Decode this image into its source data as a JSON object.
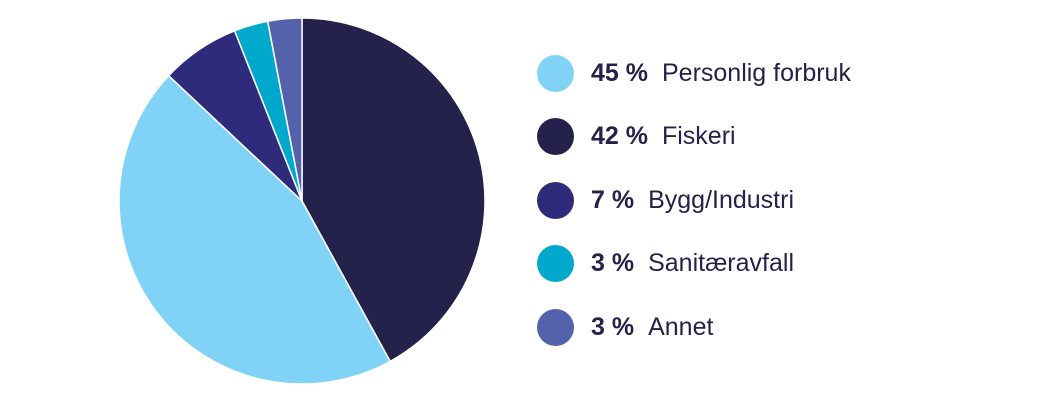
{
  "chart_data": {
    "type": "pie",
    "start": "top",
    "direction": "clockwise",
    "slices": [
      {
        "label": "Fiskeri",
        "pct_label": "42 %",
        "value": 42,
        "color": "#24224a"
      },
      {
        "label": "Personlig forbruk",
        "pct_label": "45 %",
        "value": 45,
        "color": "#80d3f6"
      },
      {
        "label": "Bygg/Industri",
        "pct_label": "7 %",
        "value": 7,
        "color": "#2e2c7a"
      },
      {
        "label": "Sanitæravfall",
        "pct_label": "3 %",
        "value": 3,
        "color": "#00a9cc"
      },
      {
        "label": "Annet",
        "pct_label": "3 %",
        "value": 3,
        "color": "#5462ac"
      }
    ],
    "legend_order": [
      1,
      0,
      2,
      3,
      4
    ],
    "legend_placement": "right"
  }
}
